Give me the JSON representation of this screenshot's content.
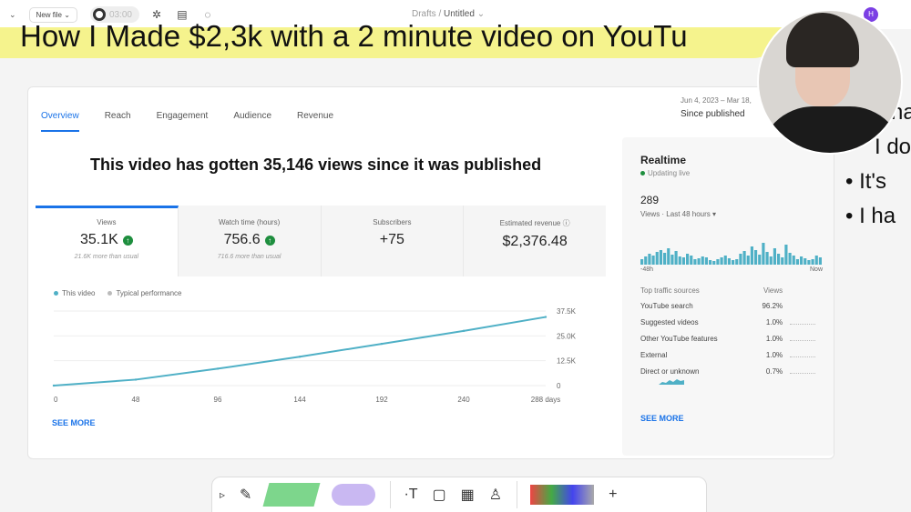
{
  "topbar": {
    "new_file": "New file",
    "timer": "03:00",
    "breadcrumb_parent": "Drafts",
    "breadcrumb_sep": "/",
    "breadcrumb_current": "Untitled",
    "user_initial": "H"
  },
  "canvas": {
    "title": "How I Made $2,3k with a 2 minute video on YouTu",
    "bullets": [
      "ha",
      "I do",
      "It's",
      "I ha"
    ]
  },
  "analytics": {
    "tabs": [
      "Overview",
      "Reach",
      "Engagement",
      "Audience",
      "Revenue"
    ],
    "date_range": "Jun 4, 2023 – Mar 18,",
    "since": "Since published",
    "headline": "This video has gotten 35,146 views since it was published",
    "metrics": [
      {
        "label": "Views",
        "value": "35.1K",
        "sub": "21.6K more than usual"
      },
      {
        "label": "Watch time (hours)",
        "value": "756.6",
        "sub": "716.6 more than usual"
      },
      {
        "label": "Subscribers",
        "value": "+75",
        "sub": ""
      },
      {
        "label": "Estimated revenue",
        "value": "$2,376.48",
        "sub": ""
      }
    ],
    "legend_this": "This video",
    "legend_typical": "Typical performance",
    "see_more": "SEE MORE"
  },
  "chart_data": {
    "type": "line",
    "x": [
      0,
      48,
      96,
      144,
      192,
      240,
      288
    ],
    "x_ticks": [
      "0",
      "48",
      "96",
      "144",
      "192",
      "240",
      "288 days"
    ],
    "y_ticks": [
      "0",
      "12.5K",
      "25.0K",
      "37.5K"
    ],
    "ylim": [
      0,
      37500
    ],
    "series": [
      {
        "name": "This video",
        "values": [
          0,
          3000,
          8500,
          14500,
          21000,
          27500,
          34500
        ]
      }
    ]
  },
  "realtime": {
    "title": "Realtime",
    "status": "Updating live",
    "count": "289",
    "count_label": "Views · Last 48 hours",
    "start_label": "-48h",
    "end_label": "Now",
    "sources_header": "Top traffic sources",
    "views_header": "Views",
    "sources": [
      {
        "name": "YouTube search",
        "pct": "96.2%"
      },
      {
        "name": "Suggested videos",
        "pct": "1.0%"
      },
      {
        "name": "Other YouTube features",
        "pct": "1.0%"
      },
      {
        "name": "External",
        "pct": "1.0%"
      },
      {
        "name": "Direct or unknown",
        "pct": "0.7%"
      }
    ],
    "see_more": "SEE MORE"
  }
}
